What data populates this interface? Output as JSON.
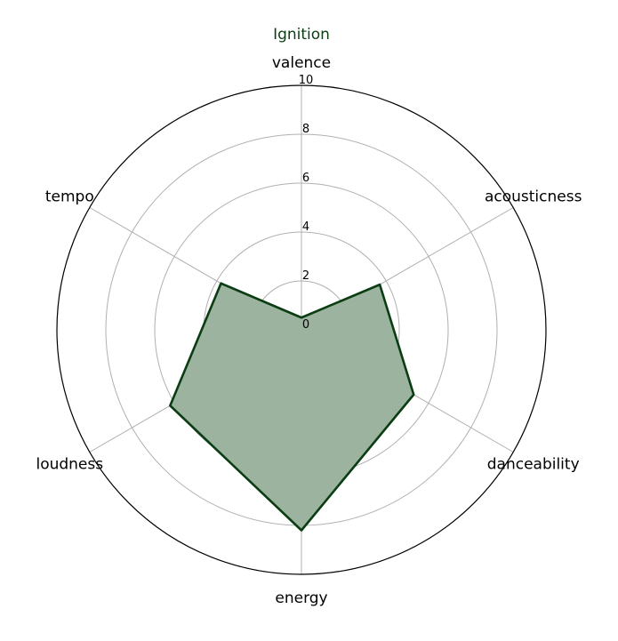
{
  "chart_data": {
    "type": "radar",
    "title": "Ignition",
    "axes": [
      "valence",
      "acousticness",
      "danceability",
      "energy",
      "loudness",
      "tempo"
    ],
    "series": [
      {
        "name": "Ignition",
        "values": [
          0.5,
          3.7,
          5.3,
          8.2,
          6.2,
          3.8
        ]
      }
    ],
    "rlim": [
      0,
      10
    ],
    "r_ticks": [
      "0",
      "2",
      "4",
      "6",
      "8",
      "10"
    ],
    "grid": true,
    "colors": {
      "line": "#0b3d13",
      "fill": "#9bb39f",
      "grid": "#b0b0b0",
      "title": "#0b3d13"
    }
  }
}
